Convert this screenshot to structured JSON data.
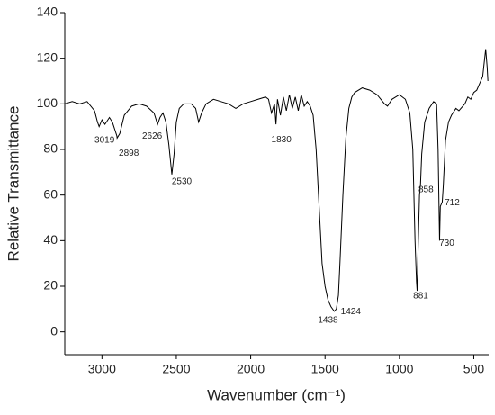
{
  "chart_data": {
    "type": "line",
    "xlabel": "Wavenumber (cm⁻¹)",
    "ylabel": "Relative Transmittance",
    "xlim": [
      3250,
      400
    ],
    "ylim": [
      -10,
      140
    ],
    "xticks": [
      3000,
      2500,
      2000,
      1500,
      1000,
      500
    ],
    "yticks": [
      0,
      20,
      40,
      60,
      80,
      100,
      120,
      140
    ],
    "color": "#000000",
    "annotations": [
      "3019",
      "2898",
      "2626",
      "2530",
      "1830",
      "1438",
      "1424",
      "881",
      "858",
      "712",
      "730"
    ],
    "x": [
      3250,
      3200,
      3150,
      3100,
      3050,
      3030,
      3019,
      3000,
      2980,
      2950,
      2930,
      2900,
      2898,
      2880,
      2850,
      2800,
      2750,
      2700,
      2650,
      2626,
      2610,
      2590,
      2570,
      2550,
      2530,
      2515,
      2500,
      2480,
      2450,
      2400,
      2370,
      2350,
      2330,
      2300,
      2250,
      2200,
      2150,
      2100,
      2050,
      2000,
      1950,
      1900,
      1880,
      1860,
      1840,
      1830,
      1820,
      1800,
      1780,
      1760,
      1740,
      1720,
      1700,
      1680,
      1660,
      1640,
      1620,
      1600,
      1580,
      1560,
      1540,
      1520,
      1500,
      1480,
      1460,
      1438,
      1424,
      1410,
      1400,
      1380,
      1360,
      1340,
      1320,
      1300,
      1250,
      1200,
      1150,
      1100,
      1080,
      1050,
      1000,
      960,
      930,
      910,
      895,
      885,
      881,
      875,
      865,
      858,
      850,
      830,
      800,
      770,
      750,
      740,
      730,
      725,
      712,
      705,
      690,
      670,
      650,
      620,
      600,
      560,
      540,
      520,
      500,
      480,
      460,
      440,
      430,
      420,
      410,
      405
    ],
    "values": [
      100,
      101,
      100,
      101,
      97,
      92,
      90,
      93,
      91,
      94,
      92,
      86,
      85,
      87,
      95,
      99,
      100,
      99,
      96,
      91,
      94,
      96,
      92,
      82,
      69,
      78,
      92,
      98,
      100,
      100,
      98,
      92,
      96,
      100,
      102,
      101,
      100,
      98,
      100,
      101,
      102,
      103,
      102,
      96,
      100,
      91,
      102,
      95,
      103,
      97,
      104,
      98,
      103,
      97,
      104,
      99,
      101,
      99,
      95,
      80,
      55,
      30,
      20,
      14,
      11,
      9,
      10,
      16,
      30,
      60,
      85,
      98,
      103,
      105,
      107,
      106,
      104,
      100,
      99,
      102,
      104,
      102,
      96,
      80,
      40,
      22,
      18,
      35,
      60,
      65,
      78,
      92,
      98,
      101,
      100,
      80,
      40,
      55,
      57,
      64,
      84,
      92,
      95,
      98,
      97,
      100,
      103,
      102,
      105,
      106,
      109,
      112,
      118,
      124,
      116,
      110
    ]
  }
}
